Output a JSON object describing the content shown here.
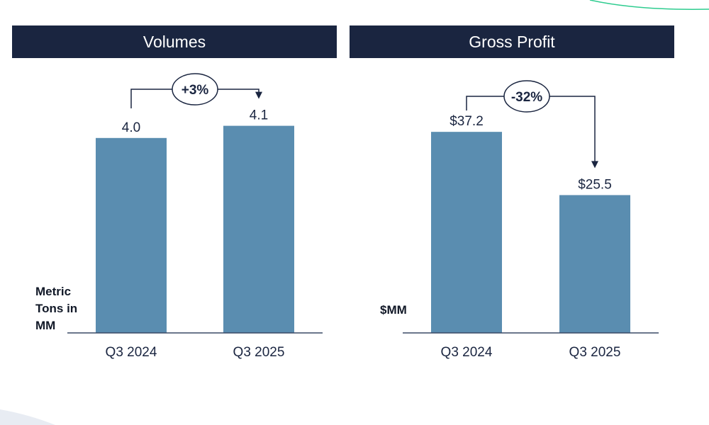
{
  "colors": {
    "header_bg": "#1a2540",
    "bar": "#5a8db0",
    "text": "#1a2540",
    "accent_line": "#2ecc8f"
  },
  "chart_data": [
    {
      "type": "bar",
      "title": "Volumes",
      "ylabel": "Metric Tons in MM",
      "ylabel_lines": [
        "Metric",
        "Tons in",
        "MM"
      ],
      "categories": [
        "Q3 2024",
        "Q3 2025"
      ],
      "values": [
        4.0,
        4.1
      ],
      "value_labels": [
        "4.0",
        "4.1"
      ],
      "change_label": "+3%",
      "grid": false
    },
    {
      "type": "bar",
      "title": "Gross Profit",
      "ylabel": "$MM",
      "ylabel_lines": [
        "$MM"
      ],
      "categories": [
        "Q3 2024",
        "Q3 2025"
      ],
      "values": [
        37.2,
        25.5
      ],
      "value_labels": [
        "$37.2",
        "$25.5"
      ],
      "change_label": "-32%",
      "grid": false
    }
  ]
}
